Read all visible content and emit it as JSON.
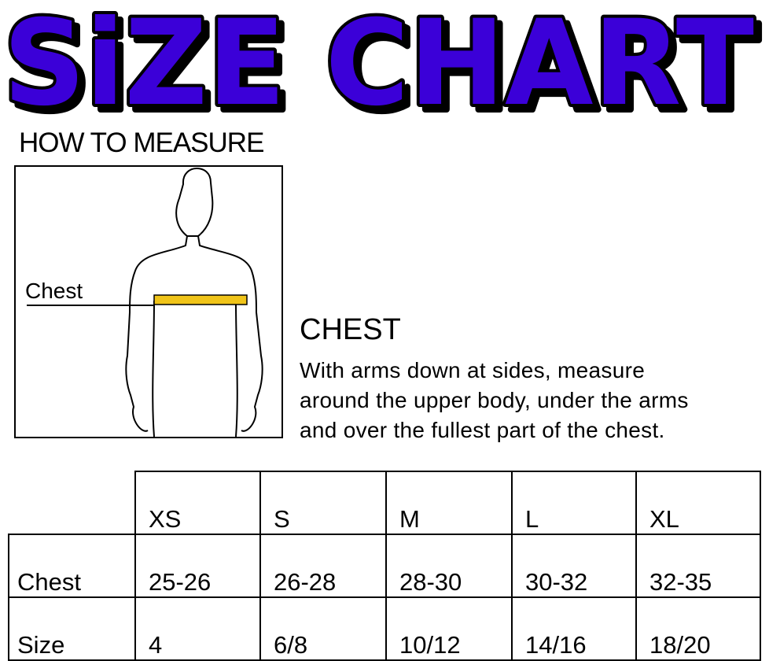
{
  "title": "SiZE CHART",
  "title_color": "#3b00d8",
  "how_to_measure": "HOW TO MEASURE",
  "figure_label": "Chest",
  "chest": {
    "heading": "CHEST",
    "lines": [
      "With arms down at sides, measure",
      "around the upper body, under the arms",
      "and over the fullest part of the chest."
    ]
  },
  "table": {
    "columns": [
      "XS",
      "S",
      "M",
      "L",
      "XL"
    ],
    "rows": [
      {
        "label": "Chest",
        "values": [
          "25-26",
          "26-28",
          "28-30",
          "30-32",
          "32-35"
        ]
      },
      {
        "label": "Size",
        "values": [
          "4",
          "6/8",
          "10/12",
          "14/16",
          "18/20"
        ]
      }
    ]
  }
}
